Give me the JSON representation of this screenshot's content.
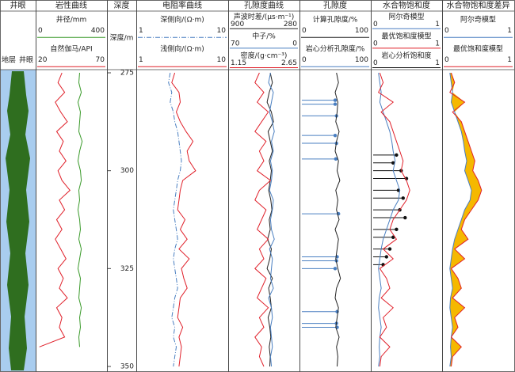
{
  "chart_data": {
    "type": "well-log",
    "ylim": [
      275,
      350
    ],
    "yticks": [
      275,
      300,
      325,
      350
    ],
    "depths": [
      275,
      277.5,
      280,
      282.5,
      285,
      287.5,
      290,
      292.5,
      295,
      297.5,
      300,
      302.5,
      305,
      307.5,
      310,
      312.5,
      315,
      317.5,
      320,
      322.5,
      325,
      327.5,
      330,
      332.5,
      335,
      337.5,
      340,
      342.5,
      345,
      347.5,
      350
    ],
    "tracks": [
      {
        "title": "井眼",
        "labels": [
          "地层",
          "井眼"
        ]
      },
      {
        "title": "岩性曲线",
        "curves": [
          {
            "name": "井径/mm",
            "color": "#3a9a2a",
            "xlim": [
              0,
              400
            ],
            "values": [
              250,
              245,
              260,
              240,
              255,
              250,
              245,
              265,
              250,
              240,
              255,
              260,
              245,
              250,
              240,
              250,
              255,
              245,
              260,
              250,
              240,
              255,
              250,
              245,
              260,
              250,
              255,
              245,
              250,
              null,
              null
            ]
          },
          {
            "name": "自然伽马/API",
            "color": "#e0202a",
            "xlim": [
              20,
              70
            ],
            "values": [
              38,
              35,
              40,
              33,
              37,
              42,
              34,
              39,
              36,
              41,
              35,
              38,
              44,
              36,
              40,
              34,
              38,
              33,
              37,
              41,
              35,
              39,
              36,
              42,
              34,
              38,
              36,
              40,
              21,
              null,
              null
            ]
          }
        ]
      },
      {
        "title": "深度",
        "label": "深度/m"
      },
      {
        "title": "电阻率曲线",
        "log": true,
        "curves": [
          {
            "name": "深侧向/(Ω·m)",
            "color": "#4a7fc1",
            "dash": "6 2 1 2",
            "xlim": [
              1,
              10
            ],
            "values": [
              2.3,
              2.2,
              2.4,
              2.3,
              2.5,
              2.6,
              2.8,
              2.9,
              3.0,
              3.1,
              3.0,
              2.8,
              2.7,
              2.6,
              2.5,
              2.6,
              2.7,
              2.8,
              2.6,
              2.5,
              2.6,
              2.7,
              2.8,
              2.6,
              2.5,
              2.4,
              2.6,
              2.5,
              2.7,
              2.6,
              2.5
            ]
          },
          {
            "name": "浅侧向/(Ω·m)",
            "color": "#e0202a",
            "xlim": [
              1,
              10
            ],
            "values": [
              2.6,
              2.4,
              2.9,
              3.0,
              2.7,
              3.0,
              3.5,
              4.2,
              3.6,
              3.8,
              4.5,
              3.2,
              3.0,
              2.9,
              2.8,
              3.4,
              3.0,
              3.6,
              2.9,
              3.8,
              3.1,
              3.3,
              3.6,
              3.0,
              2.9,
              2.8,
              3.2,
              2.9,
              3.1,
              3.0,
              2.9
            ]
          }
        ]
      },
      {
        "title": "孔隙度曲线",
        "curves": [
          {
            "name": "声波时差/(μs·m⁻¹)",
            "color": "#222222",
            "xlim": [
              900,
              280
            ],
            "values": [
              530,
              510,
              540,
              560,
              520,
              500,
              550,
              530,
              510,
              540,
              520,
              530,
              545,
              525,
              515,
              540,
              530,
              555,
              520,
              535,
              560,
              510,
              545,
              530,
              520,
              550,
              535,
              525,
              540,
              530,
              535
            ]
          },
          {
            "name": "中子/%",
            "color": "#4a7fc1",
            "xlim": [
              70,
              0
            ],
            "values": [
              28,
              30,
              25,
              27,
              29,
              26,
              24,
              27,
              25,
              28,
              26,
              27,
              29,
              25,
              26,
              28,
              27,
              24,
              29,
              26,
              27,
              28,
              25,
              30,
              27,
              26,
              28,
              27,
              26,
              28,
              27
            ]
          },
          {
            "name": "密度/(g·cm⁻³)",
            "color": "#e0202a",
            "xlim": [
              1.15,
              2.65
            ],
            "values": [
              1.8,
              1.7,
              1.9,
              1.75,
              2.0,
              1.85,
              1.7,
              1.95,
              1.8,
              1.9,
              1.75,
              2.05,
              1.8,
              1.7,
              1.95,
              1.85,
              1.75,
              2.0,
              1.8,
              1.9,
              1.7,
              1.95,
              1.85,
              1.75,
              2.0,
              1.8,
              1.9,
              1.7,
              1.85,
              1.8,
              1.9
            ]
          }
        ]
      },
      {
        "title": "孔隙度",
        "curves": [
          {
            "name": "计算孔隙度/%",
            "color": "#222222",
            "xlim": [
              0,
              100
            ],
            "values": [
              52,
              55,
              50,
              54,
              53,
              51,
              56,
              52,
              50,
              55,
              53,
              57,
              51,
              54,
              52,
              56,
              50,
              55,
              53,
              51,
              54,
              58,
              52,
              50,
              55,
              53,
              51,
              56,
              52,
              54,
              53
            ]
          },
          {
            "name": "岩心分析孔隙度/%",
            "color": "#4a7fc1",
            "xlim": [
              0,
              100
            ],
            "depths": [
              282,
              283,
              286,
              291,
              293,
              297,
              311,
              322,
              323,
              325,
              336,
              339,
              340
            ],
            "values": [
              50,
              50,
              52,
              50,
              52,
              51,
              55,
              53,
              52,
              50,
              53,
              52,
              53
            ]
          }
        ]
      },
      {
        "title": "水合物饱和度",
        "curves": [
          {
            "name": "阿尔奇模型",
            "color": "#4a7fc1",
            "xlim": [
              0,
              1
            ],
            "values": [
              0.08,
              0.1,
              0.12,
              0.1,
              0.15,
              0.2,
              0.25,
              0.28,
              0.3,
              0.33,
              0.3,
              0.35,
              0.4,
              0.38,
              0.3,
              0.25,
              0.2,
              0.15,
              0.12,
              0.1,
              0.08,
              0.1,
              0.12,
              0.09,
              0.08,
              0.1,
              0.12,
              0.1,
              0.09,
              0.1,
              0.08
            ]
          },
          {
            "name": "最优饱和度模型",
            "color": "#e0202a",
            "xlim": [
              0,
              1
            ],
            "values": [
              0.1,
              0.15,
              0.08,
              0.3,
              0.12,
              0.25,
              0.3,
              0.35,
              0.4,
              0.45,
              0.42,
              0.5,
              0.55,
              0.5,
              0.4,
              0.3,
              0.25,
              0.35,
              0.15,
              0.3,
              0.1,
              0.2,
              0.25,
              0.12,
              0.3,
              0.15,
              0.2,
              0.1,
              0.25,
              0.12,
              0.1
            ]
          },
          {
            "name": "岩心分析饱和度",
            "color": "#111111",
            "xlim": [
              0,
              1
            ],
            "depths": [
              296,
              298,
              300,
              302,
              305,
              307,
              310,
              312,
              315,
              317,
              320,
              322,
              324
            ],
            "values": [
              0.35,
              0.3,
              0.42,
              0.5,
              0.38,
              0.45,
              0.4,
              0.48,
              0.35,
              0.3,
              0.25,
              0.2,
              0.15
            ]
          }
        ]
      },
      {
        "title": "水合物饱和度差异",
        "fill": "#f5b800",
        "curves": [
          {
            "name": "阿尔奇模型",
            "color": "#4a7fc1",
            "xlim": [
              0,
              1
            ],
            "values": [
              0.08,
              0.1,
              0.12,
              0.1,
              0.15,
              0.2,
              0.25,
              0.28,
              0.3,
              0.33,
              0.3,
              0.35,
              0.4,
              0.38,
              0.3,
              0.25,
              0.2,
              0.15,
              0.12,
              0.1,
              0.08,
              0.1,
              0.12,
              0.09,
              0.08,
              0.1,
              0.12,
              0.1,
              0.09,
              0.1,
              0.08
            ]
          },
          {
            "name": "最优饱和度模型",
            "color": "#e0202a",
            "xlim": [
              0,
              1
            ],
            "values": [
              0.1,
              0.15,
              0.08,
              0.3,
              0.12,
              0.25,
              0.3,
              0.35,
              0.4,
              0.45,
              0.42,
              0.5,
              0.55,
              0.5,
              0.4,
              0.3,
              0.25,
              0.35,
              0.15,
              0.3,
              0.1,
              0.2,
              0.25,
              0.12,
              0.3,
              0.15,
              0.2,
              0.1,
              0.25,
              0.12,
              0.1
            ]
          }
        ]
      }
    ]
  }
}
